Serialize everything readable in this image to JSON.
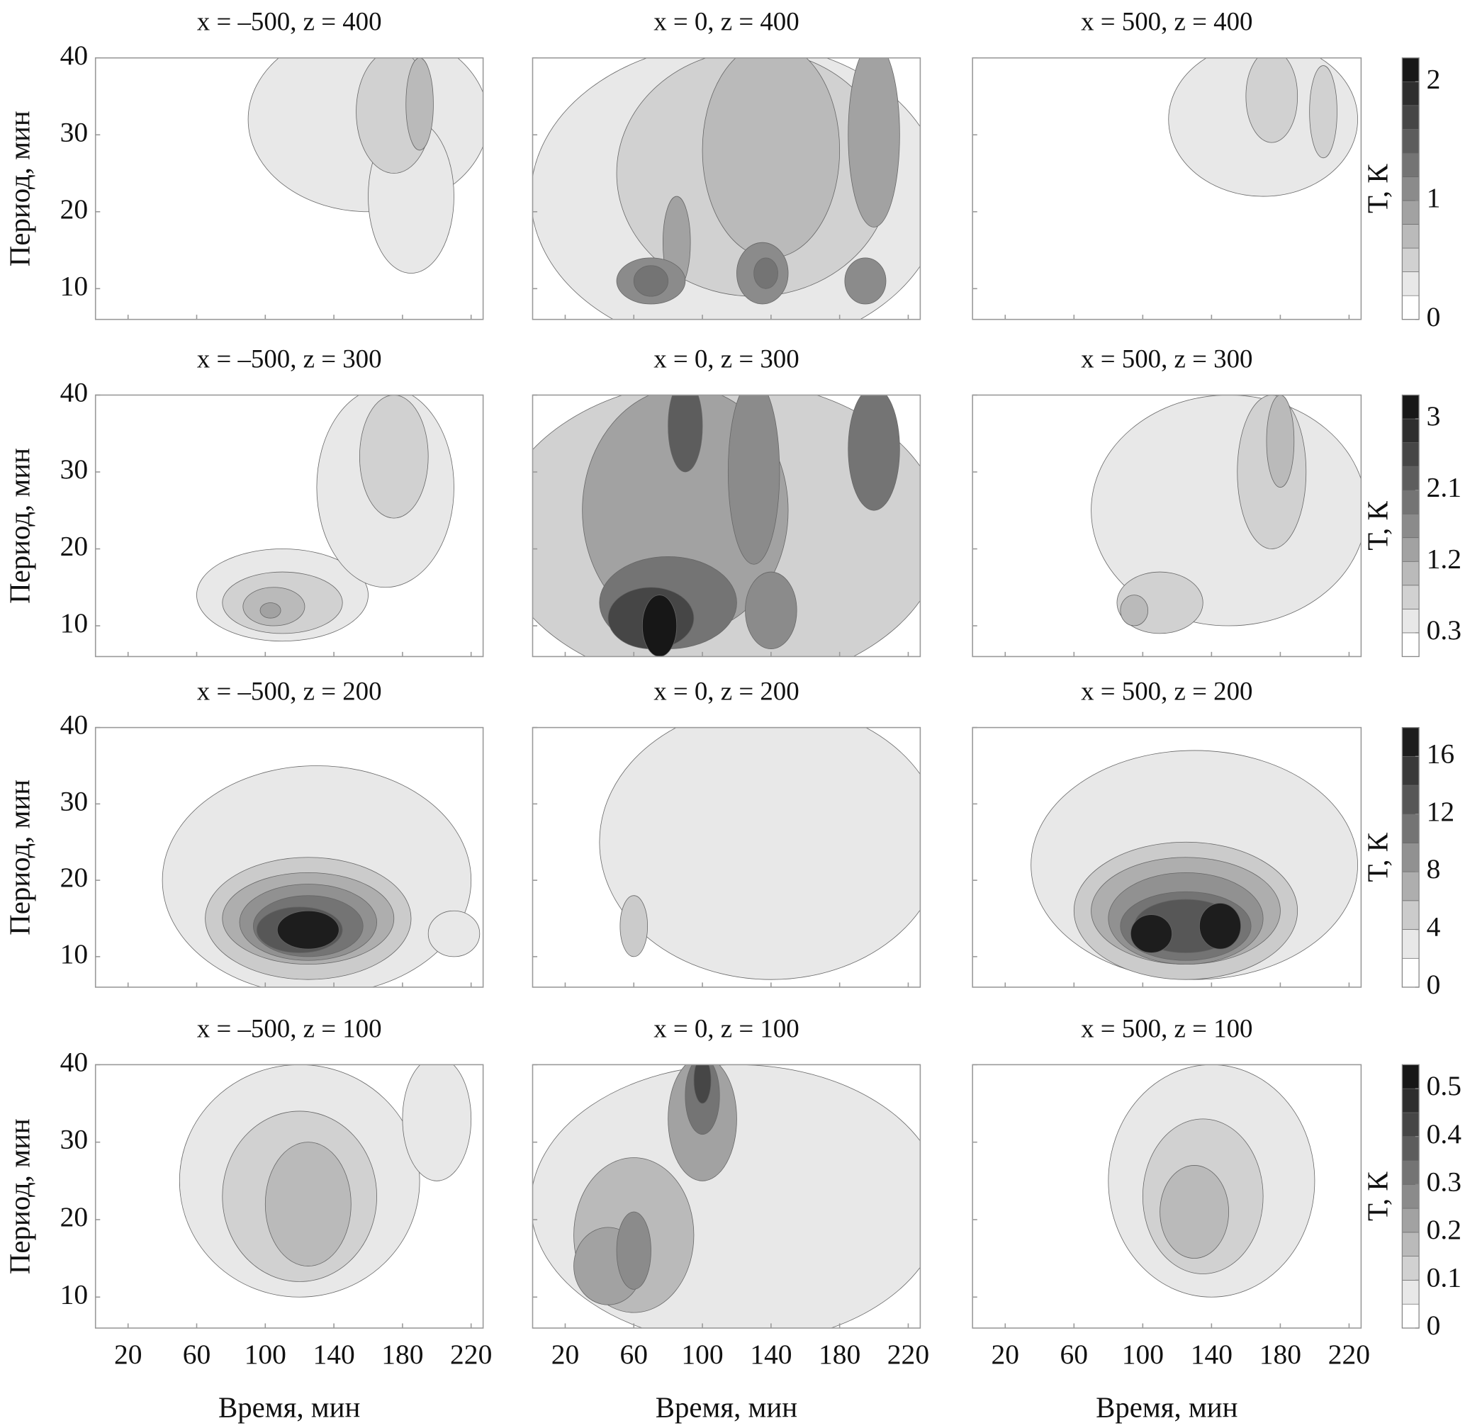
{
  "chart_data": [
    {
      "type": "contour",
      "ylabel": "Период, мин",
      "xlim": [
        1,
        227
      ],
      "ylim": [
        6,
        40
      ],
      "xticks": [
        20,
        60,
        100,
        140,
        180,
        220
      ],
      "yticks": [
        10,
        20,
        30,
        40
      ],
      "colorbar": {
        "label": "T, К",
        "lim": [
          0,
          2.2
        ],
        "ticks": [
          0,
          1,
          2
        ],
        "levels": [
          0,
          0.2,
          0.4,
          0.6,
          0.8,
          1.0,
          1.2,
          1.4,
          1.6,
          1.8,
          2.0,
          2.2
        ]
      },
      "panels": [
        {
          "title": "x = –500, z = 400",
          "regions": [
            {
              "t": 160,
              "period": 32,
              "dt": 70,
              "dp": 12,
              "value": 0.3
            },
            {
              "t": 185,
              "period": 22,
              "dt": 25,
              "dp": 10,
              "value": 0.3
            },
            {
              "t": 175,
              "period": 33,
              "dt": 22,
              "dp": 8,
              "value": 0.5
            },
            {
              "t": 190,
              "period": 34,
              "dt": 8,
              "dp": 6,
              "value": 0.7
            }
          ]
        },
        {
          "title": "x = 0, z = 400",
          "regions": [
            {
              "t": 120,
              "period": 22,
              "dt": 120,
              "dp": 20,
              "value": 0.3
            },
            {
              "t": 130,
              "period": 25,
              "dt": 80,
              "dp": 16,
              "value": 0.5
            },
            {
              "t": 140,
              "period": 28,
              "dt": 40,
              "dp": 14,
              "value": 0.7
            },
            {
              "t": 200,
              "period": 30,
              "dt": 15,
              "dp": 12,
              "value": 0.9
            },
            {
              "t": 85,
              "period": 16,
              "dt": 8,
              "dp": 6,
              "value": 0.9
            },
            {
              "t": 70,
              "period": 11,
              "dt": 20,
              "dp": 3,
              "value": 1.1
            },
            {
              "t": 135,
              "period": 12,
              "dt": 15,
              "dp": 4,
              "value": 1.1
            },
            {
              "t": 195,
              "period": 11,
              "dt": 12,
              "dp": 3,
              "value": 1.1
            },
            {
              "t": 70,
              "period": 11,
              "dt": 10,
              "dp": 2,
              "value": 1.3
            },
            {
              "t": 137,
              "period": 12,
              "dt": 7,
              "dp": 2,
              "value": 1.3
            }
          ]
        },
        {
          "title": "x = 500, z = 400",
          "regions": [
            {
              "t": 170,
              "period": 32,
              "dt": 55,
              "dp": 10,
              "value": 0.3
            },
            {
              "t": 175,
              "period": 35,
              "dt": 15,
              "dp": 6,
              "value": 0.5
            },
            {
              "t": 205,
              "period": 33,
              "dt": 8,
              "dp": 6,
              "value": 0.5
            }
          ]
        }
      ]
    },
    {
      "type": "contour",
      "ylabel": "Период, мин",
      "xlim": [
        1,
        227
      ],
      "ylim": [
        6,
        40
      ],
      "xticks": [
        20,
        60,
        100,
        140,
        180,
        220
      ],
      "yticks": [
        10,
        20,
        30,
        40
      ],
      "colorbar": {
        "label": "T, К",
        "lim": [
          0,
          3.3
        ],
        "ticks": [
          0.3,
          1.2,
          2.1,
          3
        ],
        "levels": [
          0,
          0.3,
          0.6,
          0.9,
          1.2,
          1.5,
          1.8,
          2.1,
          2.4,
          2.7,
          3.0,
          3.3
        ]
      },
      "panels": [
        {
          "title": "x = –500, z = 300",
          "regions": [
            {
              "t": 110,
              "period": 14,
              "dt": 50,
              "dp": 6,
              "value": 0.4
            },
            {
              "t": 170,
              "period": 28,
              "dt": 40,
              "dp": 13,
              "value": 0.4
            },
            {
              "t": 110,
              "period": 13,
              "dt": 35,
              "dp": 4,
              "value": 0.7
            },
            {
              "t": 175,
              "period": 32,
              "dt": 20,
              "dp": 8,
              "value": 0.7
            },
            {
              "t": 105,
              "period": 12.5,
              "dt": 18,
              "dp": 2.5,
              "value": 1.0
            },
            {
              "t": 103,
              "period": 12,
              "dt": 6,
              "dp": 1,
              "value": 1.3
            }
          ]
        },
        {
          "title": "x = 0, z = 300",
          "regions": [
            {
              "t": 110,
              "period": 22,
              "dt": 130,
              "dp": 20,
              "value": 0.7
            },
            {
              "t": 90,
              "period": 25,
              "dt": 60,
              "dp": 16,
              "value": 1.3
            },
            {
              "t": 130,
              "period": 30,
              "dt": 15,
              "dp": 12,
              "value": 1.6
            },
            {
              "t": 140,
              "period": 12,
              "dt": 15,
              "dp": 5,
              "value": 1.6
            },
            {
              "t": 80,
              "period": 13,
              "dt": 40,
              "dp": 6,
              "value": 1.9
            },
            {
              "t": 200,
              "period": 33,
              "dt": 15,
              "dp": 8,
              "value": 1.9
            },
            {
              "t": 90,
              "period": 36,
              "dt": 10,
              "dp": 6,
              "value": 2.2
            },
            {
              "t": 70,
              "period": 11,
              "dt": 25,
              "dp": 4,
              "value": 2.5
            },
            {
              "t": 75,
              "period": 10,
              "dt": 10,
              "dp": 4,
              "value": 3.1
            }
          ]
        },
        {
          "title": "x = 500, z = 300",
          "regions": [
            {
              "t": 150,
              "period": 25,
              "dt": 80,
              "dp": 15,
              "value": 0.4
            },
            {
              "t": 110,
              "period": 13,
              "dt": 25,
              "dp": 4,
              "value": 0.7
            },
            {
              "t": 175,
              "period": 30,
              "dt": 20,
              "dp": 10,
              "value": 0.7
            },
            {
              "t": 95,
              "period": 12,
              "dt": 8,
              "dp": 2,
              "value": 1.0
            },
            {
              "t": 180,
              "period": 34,
              "dt": 8,
              "dp": 6,
              "value": 1.0
            }
          ]
        }
      ]
    },
    {
      "type": "contour",
      "ylabel": "Период, мин",
      "xlim": [
        1,
        227
      ],
      "ylim": [
        6,
        40
      ],
      "xticks": [
        20,
        60,
        100,
        140,
        180,
        220
      ],
      "yticks": [
        10,
        20,
        30,
        40
      ],
      "colorbar": {
        "label": "T, К",
        "lim": [
          0,
          18
        ],
        "ticks": [
          0,
          4,
          8,
          12,
          16
        ],
        "levels": [
          0,
          2,
          4,
          6,
          8,
          10,
          12,
          14,
          16,
          18
        ]
      },
      "panels": [
        {
          "title": "x = –500, z = 200",
          "regions": [
            {
              "t": 130,
              "period": 20,
              "dt": 90,
              "dp": 15,
              "value": 2
            },
            {
              "t": 210,
              "period": 13,
              "dt": 15,
              "dp": 3,
              "value": 2
            },
            {
              "t": 125,
              "period": 15,
              "dt": 60,
              "dp": 8,
              "value": 4
            },
            {
              "t": 125,
              "period": 15,
              "dt": 50,
              "dp": 6,
              "value": 6
            },
            {
              "t": 125,
              "period": 14.5,
              "dt": 40,
              "dp": 5,
              "value": 8
            },
            {
              "t": 125,
              "period": 14,
              "dt": 32,
              "dp": 4,
              "value": 10
            },
            {
              "t": 120,
              "period": 13.5,
              "dt": 25,
              "dp": 3,
              "value": 12
            },
            {
              "t": 125,
              "period": 13.5,
              "dt": 18,
              "dp": 2.5,
              "value": 16
            }
          ]
        },
        {
          "title": "x = 0, z = 200",
          "regions": [
            {
              "t": 140,
              "period": 25,
              "dt": 100,
              "dp": 18,
              "value": 2
            },
            {
              "t": 60,
              "period": 14,
              "dt": 8,
              "dp": 4,
              "value": 4
            }
          ]
        },
        {
          "title": "x = 500, z = 200",
          "regions": [
            {
              "t": 130,
              "period": 22,
              "dt": 95,
              "dp": 15,
              "value": 2
            },
            {
              "t": 125,
              "period": 16,
              "dt": 65,
              "dp": 9,
              "value": 4
            },
            {
              "t": 125,
              "period": 16,
              "dt": 55,
              "dp": 7,
              "value": 6
            },
            {
              "t": 125,
              "period": 15,
              "dt": 45,
              "dp": 6,
              "value": 8
            },
            {
              "t": 125,
              "period": 14,
              "dt": 38,
              "dp": 4.5,
              "value": 10
            },
            {
              "t": 125,
              "period": 14,
              "dt": 30,
              "dp": 3.5,
              "value": 12
            },
            {
              "t": 105,
              "period": 13,
              "dt": 12,
              "dp": 2.5,
              "value": 16
            },
            {
              "t": 145,
              "period": 14,
              "dt": 12,
              "dp": 3,
              "value": 16
            }
          ]
        }
      ]
    },
    {
      "type": "contour",
      "ylabel": "Период, мин",
      "xlim": [
        1,
        227
      ],
      "ylim": [
        6,
        40
      ],
      "xticks": [
        20,
        60,
        100,
        140,
        180,
        220
      ],
      "yticks": [
        10,
        20,
        30,
        40
      ],
      "colorbar": {
        "label": "T, К",
        "lim": [
          0,
          0.55
        ],
        "ticks": [
          0,
          0.1,
          0.2,
          0.3,
          0.4,
          0.5
        ],
        "levels": [
          0,
          0.05,
          0.1,
          0.15,
          0.2,
          0.25,
          0.3,
          0.35,
          0.4,
          0.45,
          0.5,
          0.55
        ]
      },
      "panels": [
        {
          "title": "x = –500, z = 100",
          "xlabel": "Время, мин",
          "regions": [
            {
              "t": 120,
              "period": 25,
              "dt": 70,
              "dp": 15,
              "value": 0.07
            },
            {
              "t": 200,
              "period": 33,
              "dt": 20,
              "dp": 8,
              "value": 0.07
            },
            {
              "t": 120,
              "period": 23,
              "dt": 45,
              "dp": 11,
              "value": 0.12
            },
            {
              "t": 125,
              "period": 22,
              "dt": 25,
              "dp": 8,
              "value": 0.17
            }
          ]
        },
        {
          "title": "x = 0, z = 100",
          "xlabel": "Время, мин",
          "regions": [
            {
              "t": 120,
              "period": 22,
              "dt": 120,
              "dp": 18,
              "value": 0.07
            },
            {
              "t": 60,
              "period": 18,
              "dt": 35,
              "dp": 10,
              "value": 0.17
            },
            {
              "t": 45,
              "period": 14,
              "dt": 20,
              "dp": 5,
              "value": 0.22
            },
            {
              "t": 100,
              "period": 33,
              "dt": 20,
              "dp": 8,
              "value": 0.22
            },
            {
              "t": 60,
              "period": 16,
              "dt": 10,
              "dp": 5,
              "value": 0.27
            },
            {
              "t": 100,
              "period": 36,
              "dt": 10,
              "dp": 5,
              "value": 0.32
            },
            {
              "t": 100,
              "period": 38,
              "dt": 5,
              "dp": 3,
              "value": 0.42
            }
          ]
        },
        {
          "title": "x = 500, z = 100",
          "xlabel": "Время, мин",
          "regions": [
            {
              "t": 140,
              "period": 25,
              "dt": 60,
              "dp": 15,
              "value": 0.07
            },
            {
              "t": 135,
              "period": 23,
              "dt": 35,
              "dp": 10,
              "value": 0.12
            },
            {
              "t": 130,
              "period": 21,
              "dt": 20,
              "dp": 6,
              "value": 0.17
            }
          ]
        }
      ]
    }
  ]
}
